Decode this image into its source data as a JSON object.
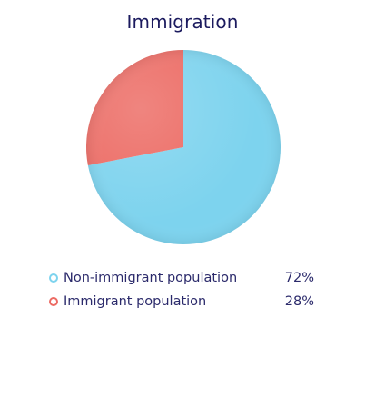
{
  "chart_data": {
    "type": "pie",
    "title": "Immigration",
    "categories": [
      "Non-immigrant population",
      "Immigrant population"
    ],
    "values": [
      72,
      28
    ],
    "value_labels": [
      "72%",
      "28%"
    ],
    "colors": [
      "#7dd3ee",
      "#ec6a63"
    ],
    "legend": {
      "position": "bottom",
      "items": [
        {
          "label": "Non-immigrant population",
          "value": "72%",
          "color": "#7dd3ee"
        },
        {
          "label": "Immigrant population",
          "value": "28%",
          "color": "#ec6a63"
        }
      ]
    }
  }
}
